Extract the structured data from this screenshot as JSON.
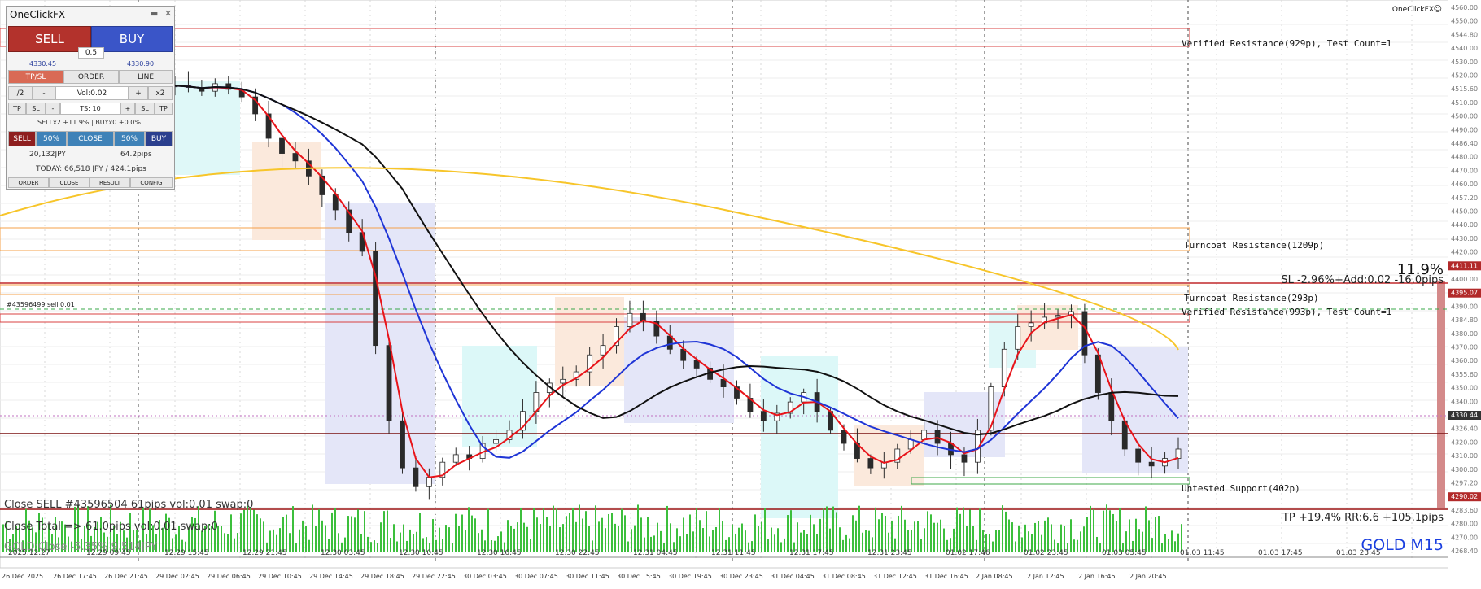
{
  "app": {
    "brand": "OneClickFX",
    "smiley": "☺"
  },
  "symbol": {
    "name": "GOLD",
    "timeframe": "M15",
    "label": "GOLD M15"
  },
  "colors": {
    "bull": "#2ca02c",
    "bear": "#333333",
    "red_ma": "#e8141a",
    "blue_ma": "#1f35d6",
    "black_ma": "#111111",
    "yellow_ma": "#f7c52a",
    "volume": "#3cbf3c",
    "panel_sell": "#b3322c",
    "panel_buy": "#3a55c8",
    "blue_text": "#1a3fe0"
  },
  "price_axis": {
    "labels": [
      "4560.00",
      "4550.00",
      "4544.80",
      "4540.00",
      "4530.00",
      "4520.00",
      "4515.60",
      "4510.00",
      "4500.00",
      "4490.00",
      "4486.40",
      "4480.00",
      "4470.00",
      "4460.00",
      "4457.20",
      "4450.00",
      "4440.00",
      "4430.00",
      "4420.00",
      "4411.11",
      "4400.00",
      "4395.07",
      "4390.00",
      "4384.80",
      "4380.00",
      "4370.00",
      "4360.00",
      "4355.60",
      "4350.00",
      "4340.00",
      "4330.44",
      "4326.40",
      "4320.00",
      "4310.00",
      "4300.00",
      "4297.20",
      "4290.02",
      "4283.60",
      "4280.00",
      "4270.00",
      "4268.40"
    ],
    "current_price": "4330.44",
    "sl_price": "4411.11",
    "entry_price": "4395.07",
    "tp_price": "4290.02"
  },
  "time_axis": {
    "top": [
      "2025.12.27",
      "12.29 09:45",
      "12.29 15:45",
      "12.29 21:45",
      "12.30 03:45",
      "12.30 10:45",
      "12.30 16:45",
      "12.30 22:45",
      "12.31 04:45",
      "12.31 11:45",
      "12.31 17:45",
      "12.31 23:45",
      "01.02 17:46",
      "01.02 23:45",
      "01.03 05:45",
      "01.03 11:45",
      "01.03 17:45",
      "01.03 23:45"
    ],
    "bottom": [
      "26 Dec 2025",
      "26 Dec 17:45",
      "26 Dec 21:45",
      "29 Dec 02:45",
      "29 Dec 06:45",
      "29 Dec 10:45",
      "29 Dec 14:45",
      "29 Dec 18:45",
      "29 Dec 22:45",
      "30 Dec 03:45",
      "30 Dec 07:45",
      "30 Dec 11:45",
      "30 Dec 15:45",
      "30 Dec 19:45",
      "30 Dec 23:45",
      "31 Dec 04:45",
      "31 Dec 08:45",
      "31 Dec 12:45",
      "31 Dec 16:45",
      "2 Jan 08:45",
      "2 Jan 12:45",
      "2 Jan 16:45",
      "2 Jan 20:45"
    ]
  },
  "zones": [
    {
      "label": "Verified Resistance(929p), Test Count=1"
    },
    {
      "label": "Turncoat Resistance(1209p)"
    },
    {
      "label": "Turncoat Resistance(293p)"
    },
    {
      "label": "Verified Resistance(993p), Test Count=1"
    },
    {
      "label": "Untested Support(402p)"
    }
  ],
  "trade": {
    "percent": "11.9%",
    "sl_text": "SL -2.96%+Add:0.02 -16.0pips",
    "order_tag": "#43596499 sell 0.01",
    "tp_text": "TP +19.4% RR:6.6 +105.1pips"
  },
  "log": {
    "line1": "Close SELL  #43596504 61pips vol:0.01 swap:0",
    "line2": "Close Total => 61.0pips vol:0.01 swap:0",
    "line3": "GOLD:Close -5.35% 9.514JPY"
  },
  "panel": {
    "title": "OneClickFX",
    "minimize": "▬",
    "close": "✕",
    "sell": "SELL",
    "buy": "BUY",
    "lot": "0.5",
    "sell_price": "4330.45",
    "buy_price": "4330.90",
    "tabs": [
      "TP/SL",
      "ORDER",
      "LINE"
    ],
    "vol_row": {
      "half": "/2",
      "minus": "-",
      "vol": "Vol:0.02",
      "plus": "+",
      "double": "x2"
    },
    "ts_row": {
      "tp": "TP",
      "sl": "SL",
      "minus": "-",
      "ts": "TS: 10",
      "plus": "+",
      "sl2": "SL",
      "tp2": "TP"
    },
    "positions": "SELLx2 +11.9% | BUYx0 +0.0%",
    "action_row": {
      "sell": "SELL",
      "half1": "50%",
      "close": "CLOSE",
      "half2": "50%",
      "buy": "BUY"
    },
    "pl_jpy": "20,132JPY",
    "pl_pips": "64.2pips",
    "today": "TODAY: 66,518 JPY / 424.1pips",
    "bottom": [
      "ORDER",
      "CLOSE",
      "RESULT",
      "CONFIG"
    ]
  },
  "chart_data": {
    "type": "candlestick",
    "title": "GOLD M15",
    "ylim": [
      4268.4,
      4560.0
    ],
    "series": [
      {
        "name": "close (approx)",
        "values": [
          4518,
          4517,
          4515,
          4519,
          4516,
          4512,
          4503,
          4490,
          4482,
          4478,
          4470,
          4460,
          4452,
          4440,
          4430,
          4380,
          4340,
          4315,
          4305,
          4310,
          4318,
          4322,
          4320,
          4328,
          4330,
          4335,
          4345,
          4355,
          4360,
          4362,
          4366,
          4375,
          4380,
          4390,
          4397,
          4393,
          4385,
          4378,
          4372,
          4368,
          4362,
          4358,
          4352,
          4345,
          4340,
          4344,
          4350,
          4355,
          4345,
          4335,
          4328,
          4320,
          4315,
          4318,
          4325,
          4330,
          4335,
          4328,
          4322,
          4318,
          4335,
          4358,
          4378,
          4390,
          4392,
          4395,
          4396,
          4398,
          4375,
          4355,
          4340,
          4325,
          4318,
          4316,
          4320,
          4325
        ]
      }
    ]
  }
}
